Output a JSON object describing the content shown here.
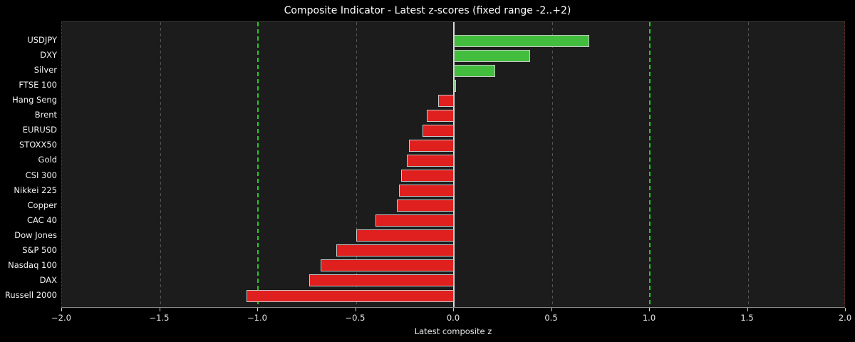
{
  "chart_data": {
    "type": "bar",
    "orientation": "horizontal",
    "title": "Composite Indicator - Latest z-scores (fixed range -2..+2)",
    "xlabel": "Latest composite z",
    "ylabel": "",
    "xlim": [
      -2,
      2
    ],
    "categories": [
      "USDJPY",
      "DXY",
      "Silver",
      "FTSE 100",
      "Hang Seng",
      "Brent",
      "EURUSD",
      "STOXX50",
      "Gold",
      "CSI 300",
      "Nikkei 225",
      "Copper",
      "CAC 40",
      "Dow Jones",
      "S&P 500",
      "Nasdaq 100",
      "DAX",
      "Russell 2000"
    ],
    "values": [
      0.69,
      0.39,
      0.21,
      0.01,
      -0.08,
      -0.14,
      -0.16,
      -0.23,
      -0.24,
      -0.27,
      -0.28,
      -0.29,
      -0.4,
      -0.5,
      -0.6,
      -0.68,
      -0.74,
      -1.06
    ],
    "xticks": {
      "values": [
        -2,
        -1.5,
        -1,
        -0.5,
        0,
        0.5,
        1,
        1.5,
        2
      ],
      "labels": [
        "−2.0",
        "−1.5",
        "−1.0",
        "−0.5",
        "0.0",
        "0.5",
        "1.0",
        "1.5",
        "2.0"
      ]
    },
    "gridlines": {
      "values": [
        -1.5,
        -0.5,
        0.5,
        1.5
      ],
      "style": "dashed",
      "color": "#555555"
    },
    "reference_lines": [
      {
        "x": -1,
        "color": "#1fce1f",
        "style": "dashed"
      },
      {
        "x": 1,
        "color": "#1fce1f",
        "style": "dashed"
      },
      {
        "x": -2,
        "color": "#6e2a23",
        "style": "dashed"
      },
      {
        "x": 2,
        "color": "#6e2a23",
        "style": "dashed"
      }
    ],
    "zero_line": {
      "x": 0,
      "color": "#d9d9d9"
    },
    "colors": {
      "positive_bar": "#42bd3e",
      "negative_bar": "#e01f1f",
      "bar_edge": "#c8c8c8",
      "figure_background": "#000000",
      "axes_background": "#1c1c1c",
      "text": "#f2f2f2"
    },
    "legend": "none",
    "grid": "vertical-dashed"
  }
}
